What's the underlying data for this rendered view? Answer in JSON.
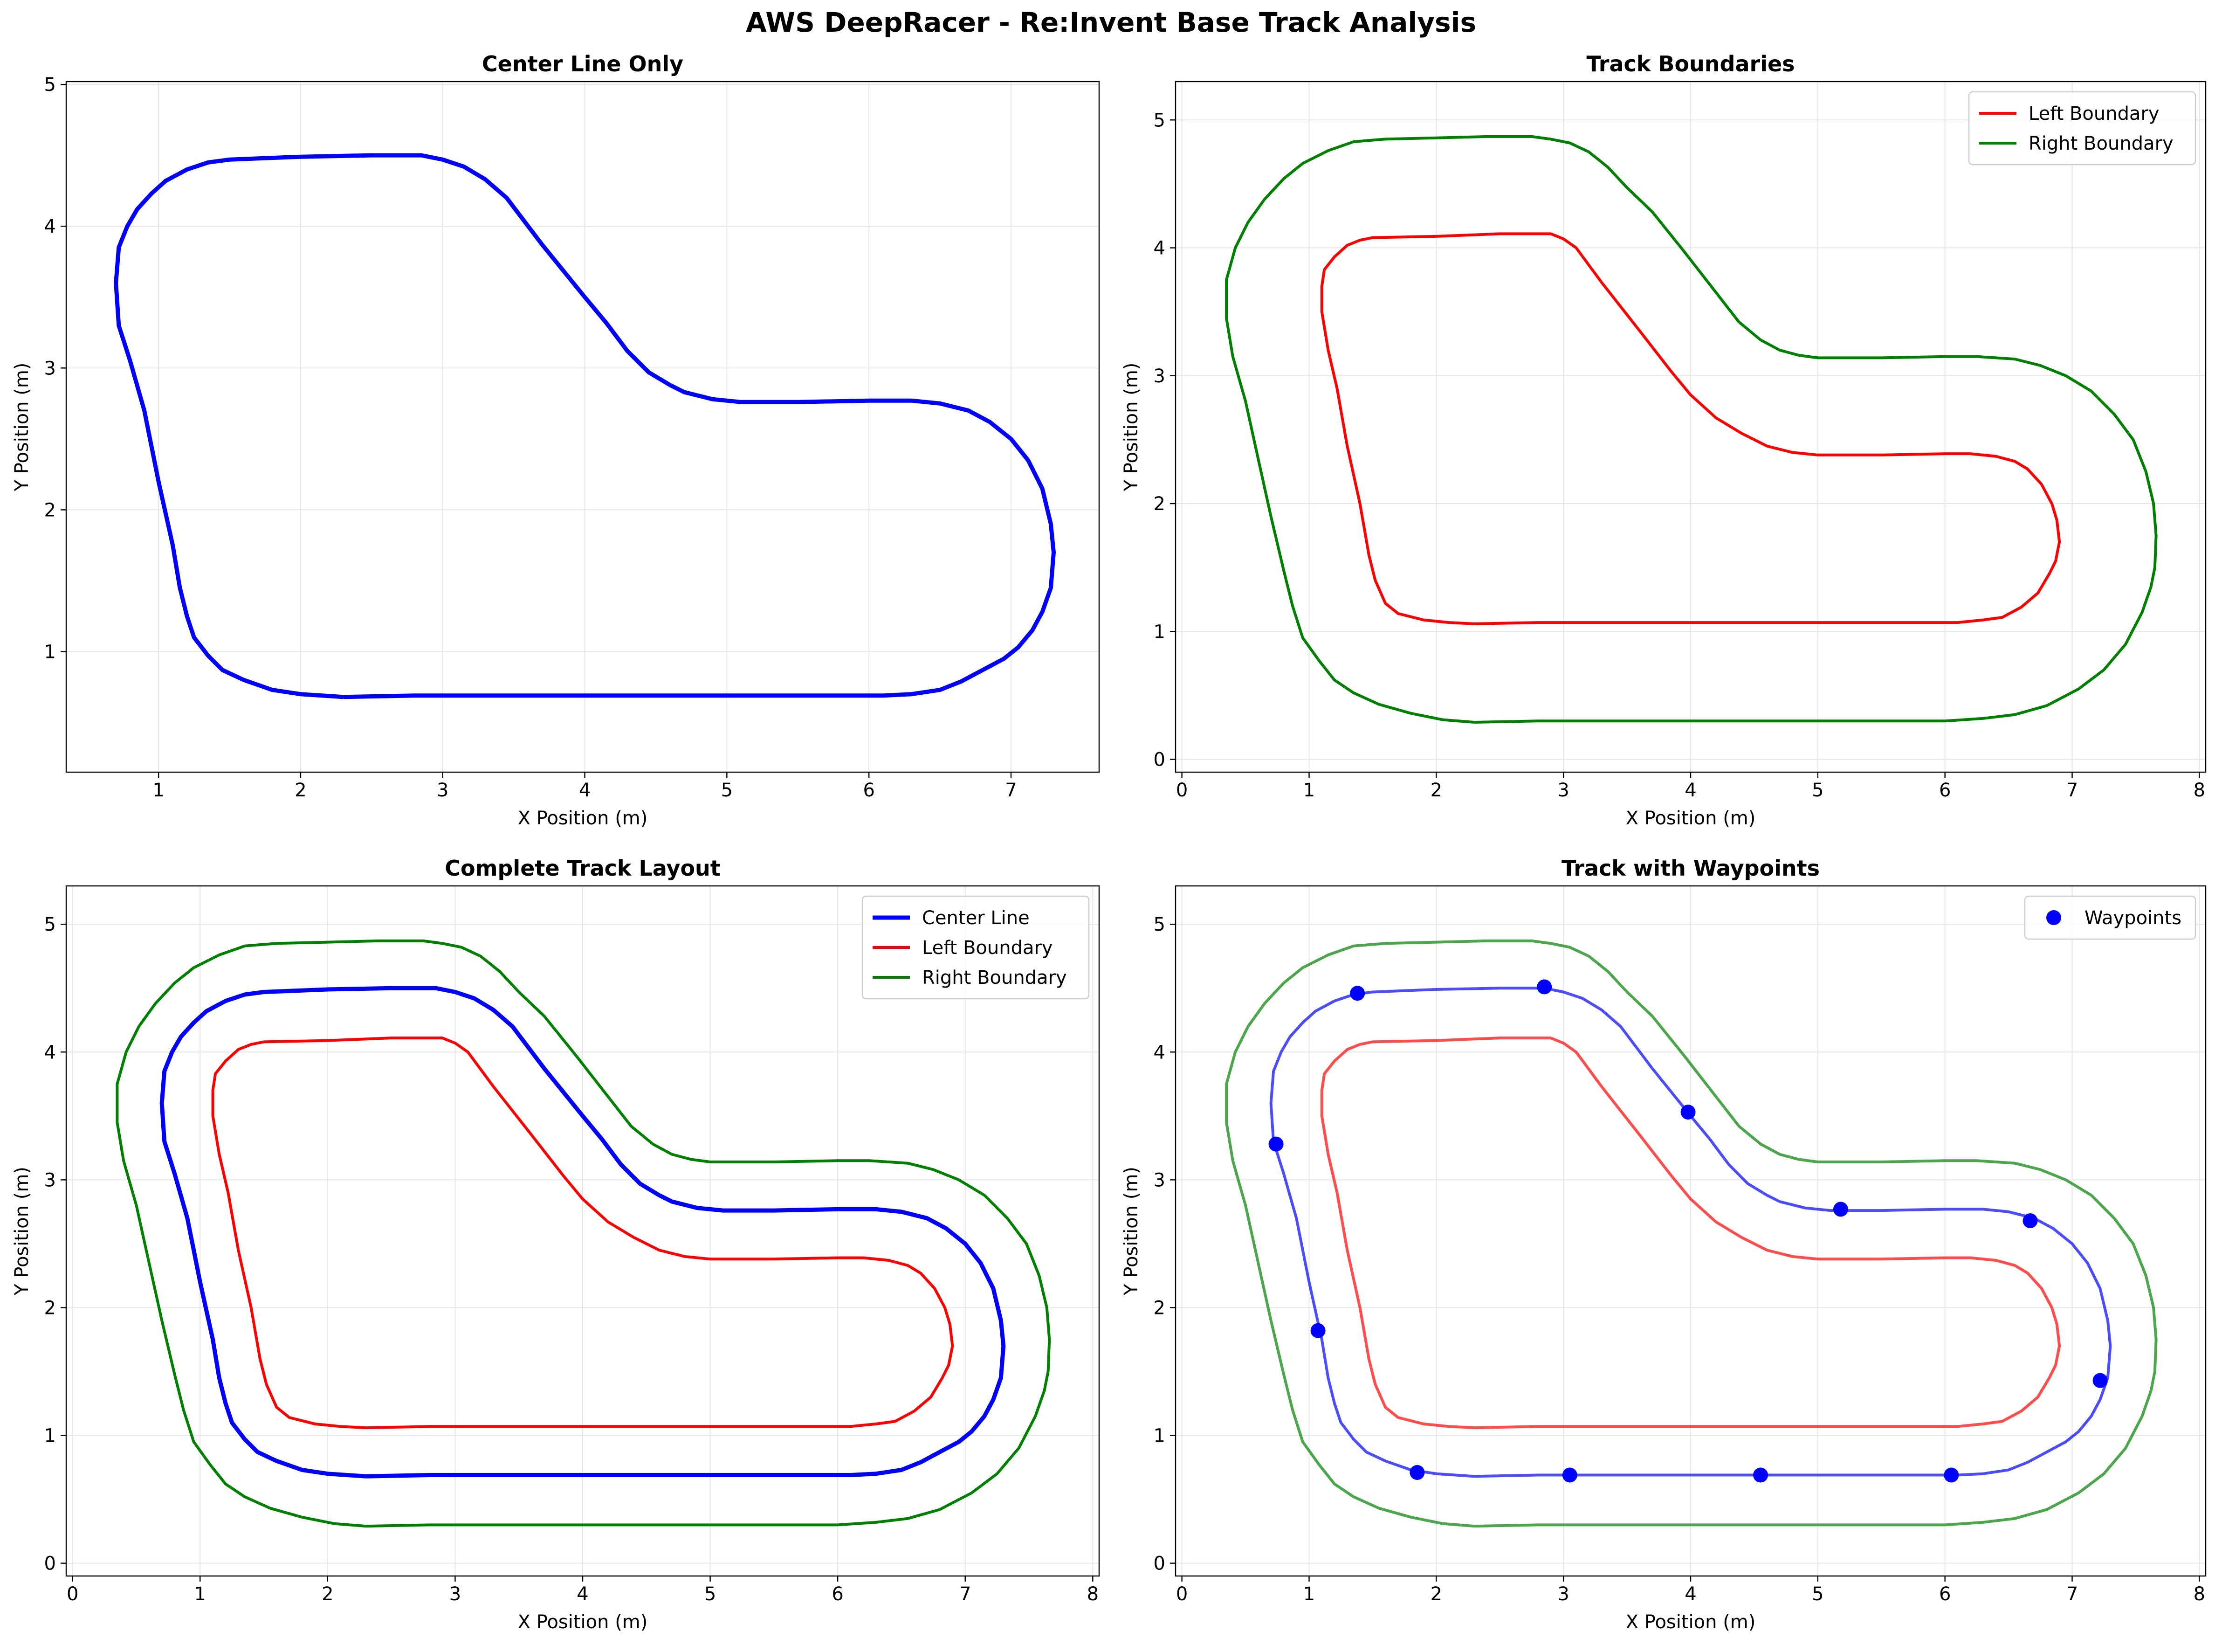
{
  "figure_title": "AWS DeepRacer - Re:Invent Base Track Analysis",
  "colors": {
    "center": "#0000ff",
    "left": "#ff0000",
    "right": "#008000",
    "grid": "#e6e6e6"
  },
  "chart_data": [
    {
      "type": "line",
      "title": "Center Line Only",
      "xlabel": "X Position (m)",
      "ylabel": "Y Position (m)",
      "xlim": [
        0.35,
        7.62
      ],
      "ylim": [
        0.15,
        5.02
      ],
      "xticks": [
        1,
        2,
        3,
        4,
        5,
        6,
        7
      ],
      "yticks": [
        1,
        2,
        3,
        4,
        5
      ],
      "grid": true,
      "legend": null,
      "series": [
        {
          "key": "center",
          "color": "#0000ff",
          "width": 3,
          "alpha": 1
        }
      ]
    },
    {
      "type": "line",
      "title": "Track Boundaries",
      "xlabel": "X Position (m)",
      "ylabel": "Y Position (m)",
      "xlim": [
        -0.05,
        8.05
      ],
      "ylim": [
        -0.1,
        5.3
      ],
      "xticks": [
        0,
        1,
        2,
        3,
        4,
        5,
        6,
        7,
        8
      ],
      "yticks": [
        0,
        1,
        2,
        3,
        4,
        5
      ],
      "grid": true,
      "legend": "top-right",
      "series": [
        {
          "key": "left",
          "name": "Left Boundary",
          "color": "#ff0000",
          "width": 2,
          "alpha": 1
        },
        {
          "key": "right",
          "name": "Right Boundary",
          "color": "#008000",
          "width": 2,
          "alpha": 1
        }
      ]
    },
    {
      "type": "line",
      "title": "Complete Track Layout",
      "xlabel": "X Position (m)",
      "ylabel": "Y Position (m)",
      "xlim": [
        -0.05,
        8.05
      ],
      "ylim": [
        -0.1,
        5.3
      ],
      "xticks": [
        0,
        1,
        2,
        3,
        4,
        5,
        6,
        7,
        8
      ],
      "yticks": [
        0,
        1,
        2,
        3,
        4,
        5
      ],
      "grid": true,
      "legend": "top-right",
      "series": [
        {
          "key": "center",
          "name": "Center Line",
          "color": "#0000ff",
          "width": 3,
          "alpha": 1
        },
        {
          "key": "left",
          "name": "Left Boundary",
          "color": "#ff0000",
          "width": 2,
          "alpha": 1
        },
        {
          "key": "right",
          "name": "Right Boundary",
          "color": "#008000",
          "width": 2,
          "alpha": 1
        }
      ]
    },
    {
      "type": "line",
      "title": "Track with Waypoints",
      "xlabel": "X Position (m)",
      "ylabel": "Y Position (m)",
      "xlim": [
        -0.05,
        8.05
      ],
      "ylim": [
        -0.1,
        5.3
      ],
      "xticks": [
        0,
        1,
        2,
        3,
        4,
        5,
        6,
        7,
        8
      ],
      "yticks": [
        0,
        1,
        2,
        3,
        4,
        5
      ],
      "grid": true,
      "legend": "top-right",
      "series": [
        {
          "key": "center",
          "color": "#0000ff",
          "width": 2,
          "alpha": 0.7
        },
        {
          "key": "left",
          "color": "#ff0000",
          "width": 2,
          "alpha": 0.7
        },
        {
          "key": "right",
          "color": "#008000",
          "width": 2,
          "alpha": 0.7
        }
      ],
      "scatter": {
        "name": "Waypoints",
        "color": "#0000ff",
        "key": "waypoints"
      }
    }
  ],
  "track": {
    "center": [
      [
        2.3,
        0.68
      ],
      [
        2.8,
        0.69
      ],
      [
        3.5,
        0.69
      ],
      [
        4.5,
        0.69
      ],
      [
        5.5,
        0.69
      ],
      [
        6.1,
        0.69
      ],
      [
        6.3,
        0.7
      ],
      [
        6.5,
        0.73
      ],
      [
        6.65,
        0.79
      ],
      [
        6.8,
        0.87
      ],
      [
        6.95,
        0.95
      ],
      [
        7.05,
        1.03
      ],
      [
        7.15,
        1.15
      ],
      [
        7.22,
        1.28
      ],
      [
        7.28,
        1.45
      ],
      [
        7.3,
        1.7
      ],
      [
        7.28,
        1.9
      ],
      [
        7.22,
        2.15
      ],
      [
        7.12,
        2.35
      ],
      [
        7.0,
        2.5
      ],
      [
        6.85,
        2.62
      ],
      [
        6.7,
        2.7
      ],
      [
        6.5,
        2.75
      ],
      [
        6.3,
        2.77
      ],
      [
        6.0,
        2.77
      ],
      [
        5.5,
        2.76
      ],
      [
        5.1,
        2.76
      ],
      [
        4.9,
        2.78
      ],
      [
        4.7,
        2.83
      ],
      [
        4.6,
        2.88
      ],
      [
        4.45,
        2.97
      ],
      [
        4.3,
        3.12
      ],
      [
        4.15,
        3.32
      ],
      [
        4.0,
        3.5
      ],
      [
        3.7,
        3.87
      ],
      [
        3.45,
        4.2
      ],
      [
        3.3,
        4.33
      ],
      [
        3.15,
        4.42
      ],
      [
        3.0,
        4.47
      ],
      [
        2.85,
        4.5
      ],
      [
        2.5,
        4.5
      ],
      [
        2.0,
        4.49
      ],
      [
        1.5,
        4.47
      ],
      [
        1.35,
        4.45
      ],
      [
        1.2,
        4.4
      ],
      [
        1.05,
        4.32
      ],
      [
        0.95,
        4.23
      ],
      [
        0.85,
        4.12
      ],
      [
        0.78,
        4.0
      ],
      [
        0.72,
        3.85
      ],
      [
        0.7,
        3.6
      ],
      [
        0.72,
        3.3
      ],
      [
        0.8,
        3.05
      ],
      [
        0.9,
        2.7
      ],
      [
        1.0,
        2.2
      ],
      [
        1.1,
        1.75
      ],
      [
        1.15,
        1.45
      ],
      [
        1.2,
        1.25
      ],
      [
        1.25,
        1.1
      ],
      [
        1.35,
        0.97
      ],
      [
        1.45,
        0.87
      ],
      [
        1.6,
        0.8
      ],
      [
        1.8,
        0.73
      ],
      [
        2.0,
        0.7
      ],
      [
        2.3,
        0.68
      ]
    ],
    "left": [
      [
        2.3,
        1.06
      ],
      [
        2.8,
        1.07
      ],
      [
        3.5,
        1.07
      ],
      [
        4.5,
        1.07
      ],
      [
        5.5,
        1.07
      ],
      [
        6.1,
        1.07
      ],
      [
        6.3,
        1.09
      ],
      [
        6.45,
        1.11
      ],
      [
        6.6,
        1.19
      ],
      [
        6.73,
        1.3
      ],
      [
        6.82,
        1.45
      ],
      [
        6.87,
        1.55
      ],
      [
        6.9,
        1.7
      ],
      [
        6.88,
        1.87
      ],
      [
        6.84,
        2.0
      ],
      [
        6.76,
        2.15
      ],
      [
        6.65,
        2.27
      ],
      [
        6.55,
        2.33
      ],
      [
        6.4,
        2.37
      ],
      [
        6.2,
        2.39
      ],
      [
        6.0,
        2.39
      ],
      [
        5.5,
        2.38
      ],
      [
        5.0,
        2.38
      ],
      [
        4.8,
        2.4
      ],
      [
        4.6,
        2.45
      ],
      [
        4.4,
        2.55
      ],
      [
        4.2,
        2.67
      ],
      [
        4.0,
        2.85
      ],
      [
        3.85,
        3.03
      ],
      [
        3.6,
        3.35
      ],
      [
        3.3,
        3.73
      ],
      [
        3.1,
        4.0
      ],
      [
        3.0,
        4.07
      ],
      [
        2.9,
        4.11
      ],
      [
        2.5,
        4.11
      ],
      [
        2.0,
        4.09
      ],
      [
        1.5,
        4.08
      ],
      [
        1.4,
        4.06
      ],
      [
        1.3,
        4.02
      ],
      [
        1.2,
        3.93
      ],
      [
        1.12,
        3.83
      ],
      [
        1.1,
        3.7
      ],
      [
        1.1,
        3.5
      ],
      [
        1.15,
        3.2
      ],
      [
        1.22,
        2.9
      ],
      [
        1.3,
        2.45
      ],
      [
        1.4,
        2.0
      ],
      [
        1.47,
        1.6
      ],
      [
        1.52,
        1.4
      ],
      [
        1.6,
        1.22
      ],
      [
        1.7,
        1.14
      ],
      [
        1.9,
        1.09
      ],
      [
        2.1,
        1.07
      ],
      [
        2.3,
        1.06
      ]
    ],
    "right": [
      [
        2.3,
        0.29
      ],
      [
        2.8,
        0.3
      ],
      [
        3.5,
        0.3
      ],
      [
        4.5,
        0.3
      ],
      [
        5.5,
        0.3
      ],
      [
        6.0,
        0.3
      ],
      [
        6.3,
        0.32
      ],
      [
        6.55,
        0.35
      ],
      [
        6.8,
        0.42
      ],
      [
        7.05,
        0.55
      ],
      [
        7.25,
        0.7
      ],
      [
        7.42,
        0.9
      ],
      [
        7.55,
        1.15
      ],
      [
        7.62,
        1.35
      ],
      [
        7.65,
        1.5
      ],
      [
        7.66,
        1.75
      ],
      [
        7.64,
        2.0
      ],
      [
        7.58,
        2.25
      ],
      [
        7.48,
        2.5
      ],
      [
        7.33,
        2.7
      ],
      [
        7.15,
        2.88
      ],
      [
        6.95,
        3.0
      ],
      [
        6.75,
        3.08
      ],
      [
        6.55,
        3.13
      ],
      [
        6.25,
        3.15
      ],
      [
        6.0,
        3.15
      ],
      [
        5.5,
        3.14
      ],
      [
        5.0,
        3.14
      ],
      [
        4.85,
        3.16
      ],
      [
        4.7,
        3.2
      ],
      [
        4.55,
        3.28
      ],
      [
        4.38,
        3.42
      ],
      [
        4.2,
        3.65
      ],
      [
        3.95,
        3.97
      ],
      [
        3.7,
        4.28
      ],
      [
        3.5,
        4.47
      ],
      [
        3.35,
        4.63
      ],
      [
        3.2,
        4.75
      ],
      [
        3.05,
        4.82
      ],
      [
        2.9,
        4.85
      ],
      [
        2.75,
        4.87
      ],
      [
        2.4,
        4.87
      ],
      [
        2.0,
        4.86
      ],
      [
        1.6,
        4.85
      ],
      [
        1.35,
        4.83
      ],
      [
        1.15,
        4.76
      ],
      [
        0.95,
        4.66
      ],
      [
        0.8,
        4.54
      ],
      [
        0.65,
        4.38
      ],
      [
        0.52,
        4.2
      ],
      [
        0.42,
        4.0
      ],
      [
        0.35,
        3.75
      ],
      [
        0.35,
        3.45
      ],
      [
        0.4,
        3.15
      ],
      [
        0.5,
        2.8
      ],
      [
        0.6,
        2.35
      ],
      [
        0.7,
        1.9
      ],
      [
        0.8,
        1.48
      ],
      [
        0.87,
        1.2
      ],
      [
        0.95,
        0.95
      ],
      [
        1.08,
        0.77
      ],
      [
        1.2,
        0.62
      ],
      [
        1.35,
        0.52
      ],
      [
        1.55,
        0.43
      ],
      [
        1.8,
        0.36
      ],
      [
        2.05,
        0.31
      ],
      [
        2.3,
        0.29
      ]
    ],
    "waypoints": [
      [
        0.74,
        3.28
      ],
      [
        1.07,
        1.82
      ],
      [
        1.85,
        0.71
      ],
      [
        3.05,
        0.69
      ],
      [
        4.55,
        0.69
      ],
      [
        6.05,
        0.69
      ],
      [
        7.22,
        1.43
      ],
      [
        6.67,
        2.68
      ],
      [
        5.18,
        2.77
      ],
      [
        3.98,
        3.53
      ],
      [
        2.85,
        4.51
      ],
      [
        1.38,
        4.46
      ]
    ]
  }
}
